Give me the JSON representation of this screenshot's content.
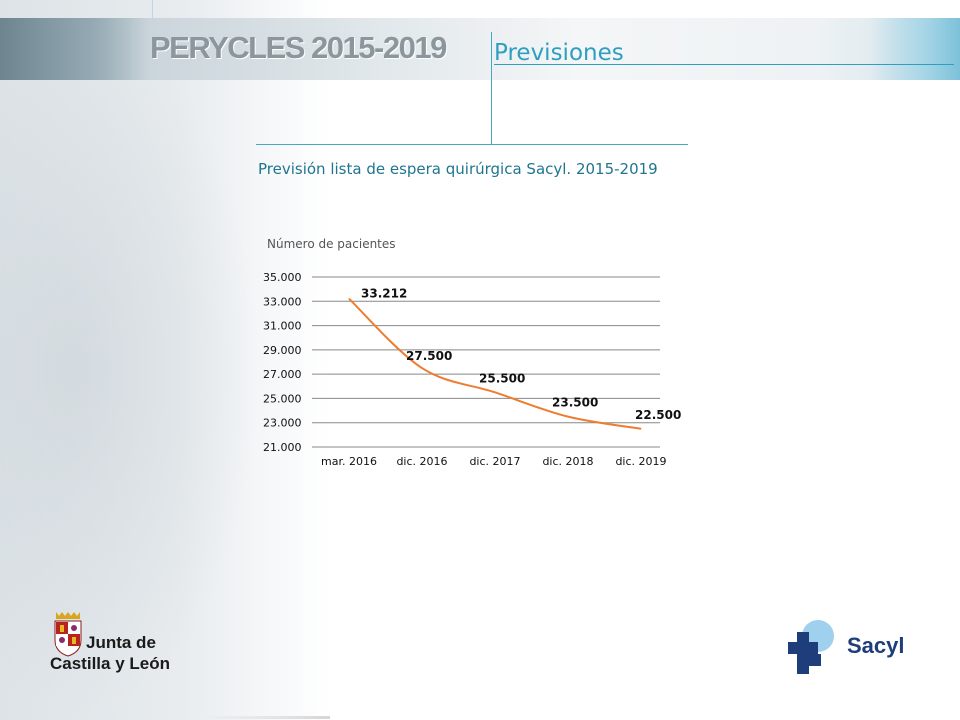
{
  "header": {
    "brand": "PERYCLES 2015-2019",
    "section_title": "Previsiones"
  },
  "subtitle": "Previsión lista de espera quirúrgica Sacyl. 2015-2019",
  "chart_data": {
    "type": "line",
    "title": "",
    "ylabel": "Número de pacientes",
    "xlabel": "",
    "categories": [
      "mar. 2016",
      "dic. 2016",
      "dic. 2017",
      "dic. 2018",
      "dic. 2019"
    ],
    "y_ticks": [
      "35.000",
      "33.000",
      "31.000",
      "29.000",
      "27.000",
      "25.000",
      "23.000",
      "21.000"
    ],
    "ylim": [
      21000,
      35000
    ],
    "grid": true,
    "series": [
      {
        "values": [
          33212,
          27500,
          25500,
          23500,
          22500
        ],
        "labels": [
          "33.212",
          "27.500",
          "25.500",
          "23.500",
          "22.500"
        ],
        "color": "#ed7d31"
      }
    ]
  },
  "footer": {
    "jcyl_line1": "Junta de",
    "jcyl_line2": "Castilla y León",
    "sacyl": "Sacyl"
  }
}
